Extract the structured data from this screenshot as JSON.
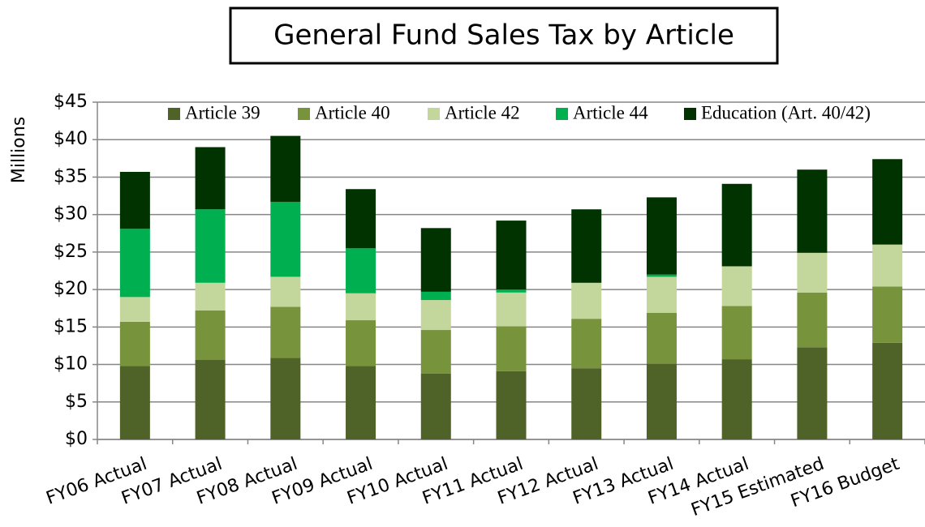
{
  "chart_data": {
    "type": "stacked_bar",
    "title": "General Fund Sales Tax by Article",
    "ylabel": "Millions",
    "categories": [
      "FY06 Actual",
      "FY07 Actual",
      "FY08 Actual",
      "FY09 Actual",
      "FY10 Actual",
      "FY11 Actual",
      "FY12 Actual",
      "FY13 Actual",
      "FY14 Actual",
      "FY15 Estimated",
      "FY16 Budget"
    ],
    "series": [
      {
        "name": "Article 39",
        "color": "#4f6228",
        "values": [
          9.8,
          10.6,
          10.9,
          9.8,
          8.8,
          9.1,
          9.5,
          10.1,
          10.7,
          12.3,
          12.9
        ]
      },
      {
        "name": "Article 40",
        "color": "#77933c",
        "values": [
          5.9,
          6.6,
          6.8,
          6.1,
          5.8,
          6.0,
          6.6,
          6.8,
          7.1,
          7.3,
          7.5
        ]
      },
      {
        "name": "Article 42",
        "color": "#c3d69b",
        "values": [
          3.3,
          3.7,
          4.0,
          3.6,
          4.0,
          4.5,
          4.8,
          4.8,
          5.3,
          5.3,
          5.6
        ]
      },
      {
        "name": "Article 44",
        "color": "#00b050",
        "values": [
          9.1,
          9.8,
          10.0,
          6.0,
          1.1,
          0.4,
          0,
          0.3,
          0,
          0,
          0
        ]
      },
      {
        "name": "Education (Art. 40/42)",
        "color": "#003300",
        "values": [
          7.6,
          8.3,
          8.8,
          7.9,
          8.5,
          9.2,
          9.8,
          10.3,
          11.0,
          11.1,
          11.4
        ]
      }
    ],
    "ylim": [
      0,
      45
    ],
    "yticks": [
      {
        "value": 0,
        "label": "$0"
      },
      {
        "value": 5,
        "label": "$5"
      },
      {
        "value": 10,
        "label": "$10"
      },
      {
        "value": 15,
        "label": "$15"
      },
      {
        "value": 20,
        "label": "$20"
      },
      {
        "value": 25,
        "label": "$25"
      },
      {
        "value": 30,
        "label": "$30"
      },
      {
        "value": 35,
        "label": "$35"
      },
      {
        "value": 40,
        "label": "$40"
      },
      {
        "value": 45,
        "label": "$45"
      }
    ],
    "grid": true,
    "legend": "top"
  }
}
